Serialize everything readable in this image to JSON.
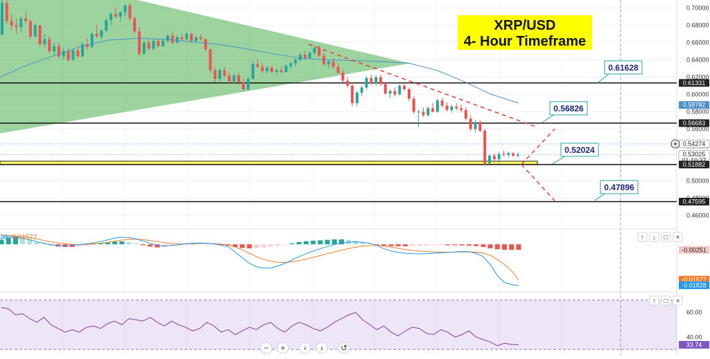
{
  "chart_data": [
    {
      "type": "candlestick",
      "title": "XRP/USD",
      "subtitle": "4- Hour Timeframe",
      "price_axis": {
        "ylim": [
          0.4451,
          0.7093
        ],
        "ticks": [
          "0.70000",
          "0.68000",
          "0.66000",
          "0.64000",
          "0.62000",
          "0.60000",
          "0.58000",
          "0.56000",
          "0.54000",
          "0.52000",
          "0.50000",
          "0.48000",
          "0.46000"
        ]
      },
      "price_tags": [
        {
          "value": 0.61331,
          "label": "0.61331",
          "bg": "#222222",
          "fg": "#ffffff"
        },
        {
          "value": 0.58782,
          "label": "0.58782",
          "bg": "#4a8fc7",
          "fg": "#ffffff"
        },
        {
          "value": 0.56683,
          "label": "0.56683",
          "bg": "#222222",
          "fg": "#ffffff"
        },
        {
          "value": 0.54274,
          "label": "0.54274",
          "bg": "#ffffff",
          "fg": "#222222"
        },
        {
          "value": 0.53025,
          "label": "0.53025",
          "sub": "01:10:37",
          "bg": "#ffffff",
          "fg": "#222222"
        },
        {
          "value": 0.51882,
          "label": "0.51882",
          "bg": "#222222",
          "fg": "#ffffff"
        },
        {
          "value": 0.47595,
          "label": "0.47595",
          "bg": "#222222",
          "fg": "#ffffff"
        }
      ],
      "horizontal_levels": [
        0.61331,
        0.56683,
        0.51882,
        0.47595
      ],
      "dotted_levels": [
        0.54274,
        0.53025
      ],
      "support_zone": [
        0.51882,
        0.52276
      ],
      "callouts": [
        "0.61628",
        "0.56826",
        "0.52024",
        "0.47896"
      ],
      "candles": [
        [
          0.669,
          0.7093,
          0.669,
          0.706
        ],
        [
          0.706,
          0.709,
          0.682,
          0.685
        ],
        [
          0.685,
          0.693,
          0.674,
          0.68
        ],
        [
          0.68,
          0.688,
          0.67,
          0.678
        ],
        [
          0.678,
          0.69,
          0.672,
          0.688
        ],
        [
          0.688,
          0.695,
          0.682,
          0.685
        ],
        [
          0.685,
          0.687,
          0.664,
          0.667
        ],
        [
          0.667,
          0.682,
          0.666,
          0.68
        ],
        [
          0.68,
          0.68,
          0.656,
          0.658
        ],
        [
          0.658,
          0.67,
          0.654,
          0.664
        ],
        [
          0.664,
          0.668,
          0.648,
          0.65
        ],
        [
          0.65,
          0.66,
          0.645,
          0.656
        ],
        [
          0.656,
          0.66,
          0.642,
          0.644
        ],
        [
          0.644,
          0.654,
          0.64,
          0.65
        ],
        [
          0.65,
          0.654,
          0.638,
          0.64
        ],
        [
          0.64,
          0.653,
          0.639,
          0.651
        ],
        [
          0.651,
          0.656,
          0.642,
          0.644
        ],
        [
          0.644,
          0.66,
          0.643,
          0.658
        ],
        [
          0.658,
          0.665,
          0.652,
          0.655
        ],
        [
          0.655,
          0.672,
          0.654,
          0.67
        ],
        [
          0.67,
          0.68,
          0.665,
          0.667
        ],
        [
          0.667,
          0.676,
          0.664,
          0.674
        ],
        [
          0.674,
          0.688,
          0.672,
          0.686
        ],
        [
          0.686,
          0.695,
          0.68,
          0.693
        ],
        [
          0.693,
          0.701,
          0.688,
          0.69
        ],
        [
          0.69,
          0.696,
          0.685,
          0.695
        ],
        [
          0.695,
          0.705,
          0.69,
          0.703
        ],
        [
          0.703,
          0.706,
          0.685,
          0.688
        ],
        [
          0.688,
          0.69,
          0.67,
          0.673
        ],
        [
          0.673,
          0.678,
          0.644,
          0.647
        ],
        [
          0.647,
          0.662,
          0.646,
          0.66
        ],
        [
          0.66,
          0.665,
          0.65,
          0.653
        ],
        [
          0.653,
          0.664,
          0.651,
          0.662
        ],
        [
          0.662,
          0.665,
          0.654,
          0.656
        ],
        [
          0.656,
          0.664,
          0.655,
          0.662
        ],
        [
          0.662,
          0.67,
          0.66,
          0.668
        ],
        [
          0.668,
          0.672,
          0.658,
          0.66
        ],
        [
          0.66,
          0.668,
          0.659,
          0.666
        ],
        [
          0.666,
          0.67,
          0.662,
          0.664
        ],
        [
          0.664,
          0.672,
          0.663,
          0.67
        ],
        [
          0.67,
          0.672,
          0.66,
          0.662
        ],
        [
          0.662,
          0.668,
          0.66,
          0.666
        ],
        [
          0.666,
          0.67,
          0.662,
          0.664
        ],
        [
          0.664,
          0.665,
          0.65,
          0.652
        ],
        [
          0.652,
          0.654,
          0.625,
          0.628
        ],
        [
          0.628,
          0.632,
          0.614,
          0.618
        ],
        [
          0.618,
          0.63,
          0.615,
          0.628
        ],
        [
          0.628,
          0.632,
          0.62,
          0.622
        ],
        [
          0.622,
          0.626,
          0.612,
          0.615
        ],
        [
          0.615,
          0.624,
          0.613,
          0.622
        ],
        [
          0.622,
          0.625,
          0.611,
          0.614
        ],
        [
          0.614,
          0.618,
          0.604,
          0.606
        ],
        [
          0.606,
          0.62,
          0.604,
          0.618
        ],
        [
          0.618,
          0.638,
          0.617,
          0.635
        ],
        [
          0.635,
          0.642,
          0.63,
          0.632
        ],
        [
          0.632,
          0.636,
          0.625,
          0.627
        ],
        [
          0.627,
          0.633,
          0.624,
          0.631
        ],
        [
          0.631,
          0.634,
          0.624,
          0.626
        ],
        [
          0.626,
          0.63,
          0.623,
          0.628
        ],
        [
          0.628,
          0.632,
          0.624,
          0.626
        ],
        [
          0.626,
          0.635,
          0.625,
          0.633
        ],
        [
          0.633,
          0.638,
          0.63,
          0.636
        ],
        [
          0.636,
          0.642,
          0.632,
          0.64
        ],
        [
          0.64,
          0.648,
          0.638,
          0.646
        ],
        [
          0.646,
          0.65,
          0.64,
          0.642
        ],
        [
          0.642,
          0.65,
          0.641,
          0.648
        ],
        [
          0.648,
          0.656,
          0.646,
          0.654
        ],
        [
          0.654,
          0.657,
          0.643,
          0.645
        ],
        [
          0.645,
          0.648,
          0.633,
          0.635
        ],
        [
          0.635,
          0.64,
          0.63,
          0.638
        ],
        [
          0.638,
          0.642,
          0.63,
          0.632
        ],
        [
          0.632,
          0.636,
          0.624,
          0.625
        ],
        [
          0.625,
          0.629,
          0.614,
          0.616
        ],
        [
          0.616,
          0.62,
          0.608,
          0.61
        ],
        [
          0.61,
          0.614,
          0.586,
          0.59
        ],
        [
          0.59,
          0.605,
          0.586,
          0.602
        ],
        [
          0.602,
          0.61,
          0.598,
          0.608
        ],
        [
          0.608,
          0.621,
          0.606,
          0.619
        ],
        [
          0.619,
          0.623,
          0.611,
          0.613
        ],
        [
          0.613,
          0.622,
          0.61,
          0.62
        ],
        [
          0.62,
          0.623,
          0.61,
          0.612
        ],
        [
          0.612,
          0.614,
          0.6,
          0.601
        ],
        [
          0.601,
          0.606,
          0.596,
          0.604
        ],
        [
          0.604,
          0.608,
          0.598,
          0.6
        ],
        [
          0.6,
          0.612,
          0.599,
          0.61
        ],
        [
          0.61,
          0.615,
          0.604,
          0.606
        ],
        [
          0.606,
          0.608,
          0.592,
          0.595
        ],
        [
          0.595,
          0.598,
          0.578,
          0.58
        ],
        [
          0.58,
          0.582,
          0.562,
          0.58
        ],
        [
          0.58,
          0.585,
          0.574,
          0.576
        ],
        [
          0.576,
          0.586,
          0.574,
          0.584
        ],
        [
          0.584,
          0.59,
          0.579,
          0.58
        ],
        [
          0.58,
          0.595,
          0.579,
          0.593
        ],
        [
          0.593,
          0.596,
          0.585,
          0.587
        ],
        [
          0.587,
          0.591,
          0.58,
          0.582
        ],
        [
          0.582,
          0.588,
          0.579,
          0.586
        ],
        [
          0.586,
          0.59,
          0.582,
          0.584
        ],
        [
          0.584,
          0.588,
          0.579,
          0.582
        ],
        [
          0.582,
          0.585,
          0.57,
          0.572
        ],
        [
          0.572,
          0.576,
          0.558,
          0.56
        ],
        [
          0.56,
          0.57,
          0.556,
          0.568
        ],
        [
          0.568,
          0.57,
          0.556,
          0.558
        ],
        [
          0.558,
          0.56,
          0.518,
          0.52
        ],
        [
          0.52,
          0.531,
          0.519,
          0.529
        ],
        [
          0.529,
          0.532,
          0.521,
          0.525
        ],
        [
          0.525,
          0.533,
          0.52,
          0.531
        ],
        [
          0.531,
          0.535,
          0.528,
          0.53
        ],
        [
          0.53,
          0.534,
          0.527,
          0.532
        ],
        [
          0.532,
          0.533,
          0.528,
          0.529
        ],
        [
          0.529,
          0.533,
          0.527,
          0.5303
        ]
      ],
      "moving_average": [
        0.62,
        0.634,
        0.645,
        0.656,
        0.663,
        0.665,
        0.664,
        0.661,
        0.658,
        0.653,
        0.647,
        0.642,
        0.64,
        0.639,
        0.638,
        0.636,
        0.628,
        0.615,
        0.6,
        0.59
      ],
      "triangle_pattern": {
        "apex_price": 0.636,
        "upper_price": 0.7093,
        "lower_price": 0.555
      }
    },
    {
      "type": "macd",
      "legend": [
        "28",
        "-0.01577"
      ],
      "ylim": [
        -0.02,
        0.005
      ],
      "tags": [
        {
          "value": -0.00251,
          "label": "-0.00251",
          "bg": "#f4c7c7",
          "fg": "#222222"
        },
        {
          "value": -0.01577,
          "label": "-0.01577",
          "bg": "#f57c27",
          "fg": "#ffffff"
        },
        {
          "value": -0.01828,
          "label": "-0.01828",
          "bg": "#2196f3",
          "fg": "#ffffff"
        }
      ],
      "macd_line": [
        0.003,
        0.0035,
        0.0033,
        0.0028,
        0.002,
        0.0012,
        0.0005,
        -0.0002,
        -0.0006,
        -0.0007,
        -0.0004,
        -0.0001,
        0.0002,
        0.0006,
        0.0012,
        0.002,
        0.0028,
        0.0032,
        0.003,
        0.0024,
        0.0015,
        0.0005,
        -0.0004,
        -0.0008,
        -0.0005,
        -0.0002,
        0.0003,
        0.0005,
        0.0006,
        0.0005,
        0.0002,
        -0.0004,
        -0.001,
        -0.0035,
        -0.006,
        -0.0085,
        -0.01,
        -0.0106,
        -0.0105,
        -0.0097,
        -0.0085,
        -0.007,
        -0.0055,
        -0.0042,
        -0.003,
        -0.002,
        -0.001,
        -0.0001,
        0.0006,
        0.001,
        0.0011,
        0.0009,
        0.0005,
        -0.0005,
        -0.002,
        -0.003,
        -0.0036,
        -0.004,
        -0.0042,
        -0.0043,
        -0.0042,
        -0.004,
        -0.0038,
        -0.0036,
        -0.0034,
        -0.0032,
        -0.0033,
        -0.004,
        -0.0055,
        -0.009,
        -0.014,
        -0.017,
        -0.018,
        -0.0183
      ],
      "signal_line": [
        0.004,
        0.004,
        0.0038,
        0.0035,
        0.003,
        0.0024,
        0.0017,
        0.0011,
        0.0006,
        0.0002,
        0.0,
        -0.0001,
        0.0,
        0.0002,
        0.0005,
        0.0009,
        0.0014,
        0.0019,
        0.0022,
        0.0023,
        0.0021,
        0.0017,
        0.0012,
        0.0007,
        0.0004,
        0.0002,
        0.0002,
        0.0003,
        0.0004,
        0.0004,
        0.0003,
        0.0001,
        -0.0003,
        -0.0012,
        -0.0025,
        -0.004,
        -0.0055,
        -0.0067,
        -0.0075,
        -0.008,
        -0.0081,
        -0.0078,
        -0.0073,
        -0.0066,
        -0.0058,
        -0.005,
        -0.0042,
        -0.0034,
        -0.0026,
        -0.0019,
        -0.0013,
        -0.0008,
        -0.0005,
        -0.0005,
        -0.0008,
        -0.0013,
        -0.0018,
        -0.0023,
        -0.0027,
        -0.003,
        -0.0032,
        -0.0034,
        -0.0035,
        -0.0035,
        -0.0035,
        -0.0034,
        -0.0034,
        -0.0035,
        -0.0039,
        -0.0049,
        -0.0068,
        -0.009,
        -0.0118,
        -0.0158
      ],
      "histogram": [
        0.002,
        0.003,
        0.0035,
        0.003,
        0.002,
        0.001,
        0.0004,
        -0.0004,
        -0.001,
        -0.0012,
        -0.0012,
        -0.001,
        -0.0006,
        -0.0002,
        0.0004,
        0.0008,
        0.0012,
        0.0013,
        0.001,
        0.0004,
        -0.0004,
        -0.001,
        -0.0014,
        -0.0012,
        -0.0006,
        -0.0002,
        0.0003,
        0.0005,
        0.0004,
        0.0002,
        0.0,
        -0.0003,
        -0.0006,
        -0.0012,
        -0.0016,
        -0.0018,
        -0.0017,
        -0.0014,
        -0.001,
        -0.0006,
        -0.0002,
        0.0004,
        0.001,
        0.0014,
        0.0016,
        0.0018,
        0.002,
        0.0022,
        0.0022,
        0.002,
        0.0016,
        0.001,
        0.0004,
        -0.0002,
        -0.0006,
        -0.0008,
        -0.0009,
        -0.0009,
        -0.0008,
        -0.0007,
        -0.0006,
        -0.0005,
        -0.0004,
        -0.0004,
        -0.0004,
        -0.0005,
        -0.0006,
        -0.0008,
        -0.0012,
        -0.0018,
        -0.0022,
        -0.0024,
        -0.0025,
        -0.0025
      ]
    },
    {
      "type": "rsi",
      "ylim": [
        25,
        75
      ],
      "ticks": [
        "60.00",
        "40.00"
      ],
      "band": [
        30,
        70
      ],
      "tags": [
        {
          "value": 33.74,
          "label": "33.74",
          "bg": "#7e57c2",
          "fg": "#ffffff"
        }
      ],
      "values": [
        64,
        63,
        58,
        59,
        55,
        52,
        56,
        50,
        47,
        44,
        46,
        44,
        48,
        49,
        47,
        51,
        53,
        50,
        55,
        54,
        53,
        56,
        52,
        49,
        53,
        50,
        48,
        45,
        47,
        52,
        49,
        44,
        46,
        42,
        45,
        48,
        46,
        50,
        52,
        47,
        44,
        49,
        52,
        50,
        47,
        45,
        48,
        52,
        55,
        58,
        60,
        54,
        50,
        46,
        49,
        44,
        41,
        45,
        48,
        47,
        43,
        42,
        46,
        44,
        40,
        42,
        45,
        40,
        38,
        36,
        33,
        35,
        34,
        33.74
      ]
    }
  ],
  "icons": [
    "up-arrow-icon",
    "down-arrow-icon",
    "maximize-icon",
    "close-icon",
    "zoom-out-icon",
    "zoom-in-icon",
    "scroll-left-icon",
    "scroll-right-icon",
    "reset-icon"
  ]
}
